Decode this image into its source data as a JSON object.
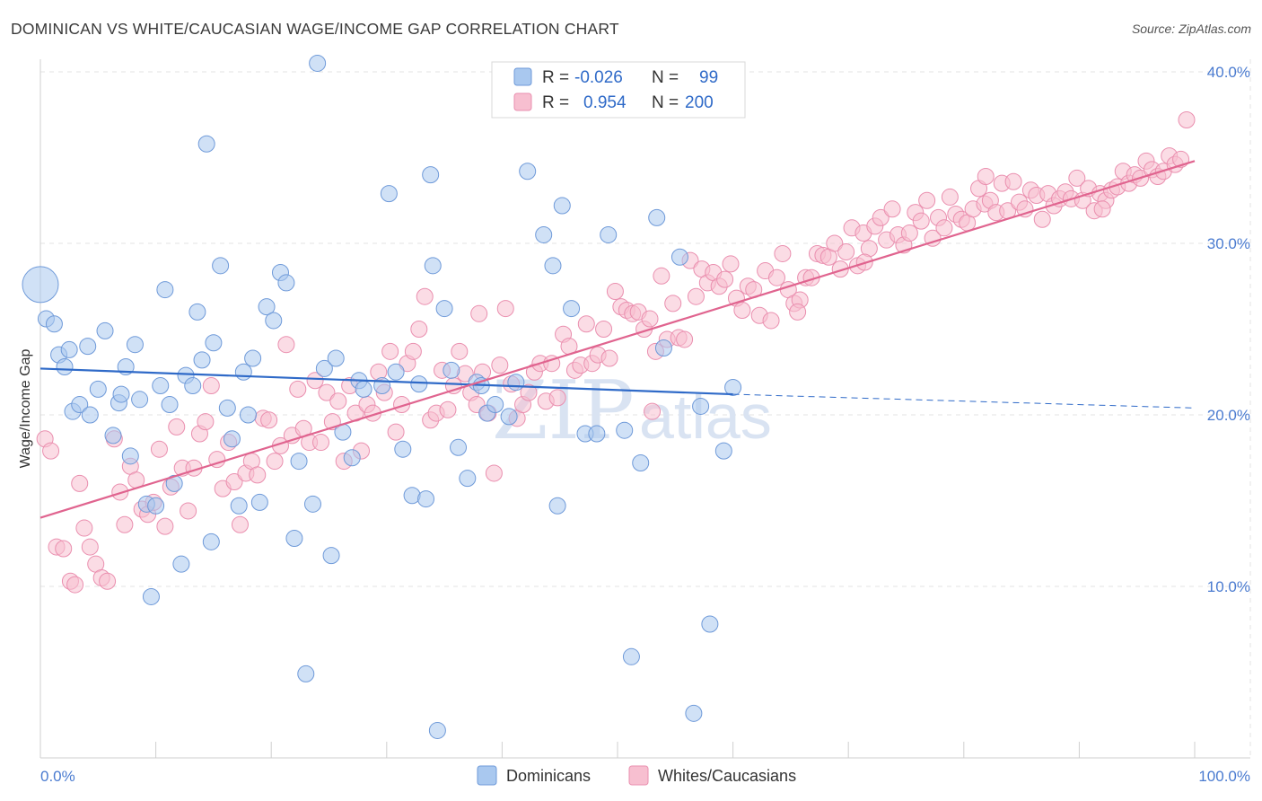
{
  "header": {
    "title": "DOMINICAN VS WHITE/CAUCASIAN WAGE/INCOME GAP CORRELATION CHART",
    "source": "Source: ZipAtlas.com"
  },
  "colors": {
    "blue_fill": "#a9c8ef",
    "blue_stroke": "#6f9ad9",
    "blue_line": "#2f6ac8",
    "pink_fill": "#f7bfd0",
    "pink_stroke": "#ea8faf",
    "pink_line": "#e0648f",
    "grid": "#e3e3e3",
    "axis_label": "#4a7bd0"
  },
  "legend": {
    "rows": [
      {
        "r_label": "R =",
        "r_value": "-0.026",
        "n_label": "N =",
        "n_value": "99"
      },
      {
        "r_label": "R =",
        "r_value": "0.954",
        "n_label": "N =",
        "n_value": "200"
      }
    ]
  },
  "bottom_legend": {
    "items": [
      "Dominicans",
      "Whites/Caucasians"
    ]
  },
  "watermark": {
    "zip": "ZIP",
    "atlas": "atlas"
  },
  "chart_data": {
    "type": "scatter",
    "title": "DOMINICAN VS WHITE/CAUCASIAN WAGE/INCOME GAP CORRELATION CHART",
    "xlabel": "",
    "ylabel": "Wage/Income Gap",
    "xlim": [
      0,
      100
    ],
    "ylim": [
      0,
      40
    ],
    "x_tick_labels": [
      "0.0%",
      "100.0%"
    ],
    "y_ticks": [
      10,
      20,
      30,
      40
    ],
    "y_tick_labels": [
      "10.0%",
      "20.0%",
      "30.0%",
      "40.0%"
    ],
    "series": [
      {
        "name": "Dominicans",
        "r": -0.026,
        "n": 99,
        "trend": {
          "x0": 0,
          "y0": 22.7,
          "x1": 60,
          "y1": 21.2,
          "dashed_to_x": 100,
          "dashed_to_y": 20.4
        },
        "points": [
          [
            0,
            27.6,
            "big"
          ],
          [
            0.5,
            25.6
          ],
          [
            1.2,
            25.3
          ],
          [
            1.6,
            23.5
          ],
          [
            2.1,
            22.8
          ],
          [
            2.8,
            20.2
          ],
          [
            3.4,
            20.6
          ],
          [
            2.5,
            23.8
          ],
          [
            4.1,
            24.0
          ],
          [
            4.3,
            20.0
          ],
          [
            5.0,
            21.5
          ],
          [
            5.6,
            24.9
          ],
          [
            6.3,
            18.8
          ],
          [
            6.8,
            20.7
          ],
          [
            7.0,
            21.2
          ],
          [
            7.4,
            22.8
          ],
          [
            7.8,
            17.6
          ],
          [
            8.2,
            24.1
          ],
          [
            8.6,
            20.9
          ],
          [
            9.2,
            14.8
          ],
          [
            9.6,
            9.4
          ],
          [
            10.0,
            14.7
          ],
          [
            10.4,
            21.7
          ],
          [
            10.8,
            27.3
          ],
          [
            11.2,
            20.6
          ],
          [
            11.6,
            16.0
          ],
          [
            12.2,
            11.3
          ],
          [
            12.6,
            22.3
          ],
          [
            13.2,
            21.7
          ],
          [
            13.6,
            26.0
          ],
          [
            14.0,
            23.2
          ],
          [
            14.4,
            35.8
          ],
          [
            14.8,
            12.6
          ],
          [
            15.0,
            24.2
          ],
          [
            15.6,
            28.7
          ],
          [
            16.2,
            20.4
          ],
          [
            16.6,
            18.6
          ],
          [
            17.2,
            14.7
          ],
          [
            17.6,
            22.5
          ],
          [
            18.0,
            20.0
          ],
          [
            18.4,
            23.3
          ],
          [
            19.0,
            14.9
          ],
          [
            19.6,
            26.3
          ],
          [
            20.2,
            25.5
          ],
          [
            20.8,
            28.3
          ],
          [
            21.3,
            27.7
          ],
          [
            22.0,
            12.8
          ],
          [
            22.4,
            17.3
          ],
          [
            23.0,
            4.9
          ],
          [
            23.6,
            14.8
          ],
          [
            24.0,
            40.5
          ],
          [
            24.6,
            22.7
          ],
          [
            25.2,
            11.8
          ],
          [
            25.6,
            23.3
          ],
          [
            26.2,
            19.0
          ],
          [
            27.0,
            17.5
          ],
          [
            27.6,
            22.0
          ],
          [
            28.0,
            21.5
          ],
          [
            29.6,
            21.7
          ],
          [
            30.2,
            32.9
          ],
          [
            30.8,
            22.5
          ],
          [
            31.4,
            18.0
          ],
          [
            32.2,
            15.3
          ],
          [
            32.8,
            21.8
          ],
          [
            33.4,
            15.1
          ],
          [
            34.0,
            28.7
          ],
          [
            34.4,
            1.6
          ],
          [
            35.0,
            26.2
          ],
          [
            35.6,
            22.6
          ],
          [
            36.2,
            18.1
          ],
          [
            37.0,
            16.3
          ],
          [
            37.8,
            21.9
          ],
          [
            38.2,
            21.7
          ],
          [
            38.7,
            20.1
          ],
          [
            39.4,
            20.6
          ],
          [
            40.6,
            19.9
          ],
          [
            41.2,
            21.9
          ],
          [
            42.2,
            34.2
          ],
          [
            43.6,
            30.5
          ],
          [
            44.4,
            28.7
          ],
          [
            45.2,
            32.2
          ],
          [
            46.0,
            26.2
          ],
          [
            47.2,
            18.9
          ],
          [
            48.2,
            18.9
          ],
          [
            49.2,
            30.5
          ],
          [
            50.6,
            19.1
          ],
          [
            51.2,
            5.9
          ],
          [
            52.0,
            17.2
          ],
          [
            53.4,
            31.5
          ],
          [
            54.0,
            23.9
          ],
          [
            55.4,
            29.2
          ],
          [
            56.6,
            2.6
          ],
          [
            57.2,
            20.5
          ],
          [
            58.0,
            7.8
          ],
          [
            59.2,
            17.9
          ],
          [
            60.0,
            21.6
          ],
          [
            44.8,
            14.7
          ],
          [
            33.8,
            34.0
          ]
        ]
      },
      {
        "name": "Whites/Caucasians",
        "r": 0.954,
        "n": 200,
        "trend": {
          "x0": 0,
          "y0": 14.0,
          "x1": 100,
          "y1": 34.8
        },
        "points": [
          [
            0.4,
            18.6
          ],
          [
            0.9,
            17.9
          ],
          [
            1.4,
            12.3
          ],
          [
            2.0,
            12.2
          ],
          [
            2.6,
            10.3
          ],
          [
            3.0,
            10.1
          ],
          [
            3.4,
            16.0
          ],
          [
            3.8,
            13.4
          ],
          [
            4.3,
            12.3
          ],
          [
            4.8,
            11.3
          ],
          [
            5.3,
            10.5
          ],
          [
            5.8,
            10.3
          ],
          [
            6.4,
            18.6
          ],
          [
            6.9,
            15.5
          ],
          [
            7.3,
            13.6
          ],
          [
            7.8,
            17.0
          ],
          [
            8.3,
            16.2
          ],
          [
            8.8,
            14.5
          ],
          [
            9.3,
            14.2
          ],
          [
            9.8,
            14.9
          ],
          [
            10.3,
            18.0
          ],
          [
            10.8,
            13.5
          ],
          [
            11.3,
            15.8
          ],
          [
            11.8,
            19.3
          ],
          [
            12.3,
            16.9
          ],
          [
            12.8,
            14.4
          ],
          [
            13.3,
            16.9
          ],
          [
            13.8,
            18.9
          ],
          [
            14.3,
            19.6
          ],
          [
            14.8,
            21.7
          ],
          [
            15.3,
            17.4
          ],
          [
            15.8,
            15.7
          ],
          [
            16.3,
            18.4
          ],
          [
            16.8,
            16.1
          ],
          [
            17.3,
            13.6
          ],
          [
            17.8,
            16.6
          ],
          [
            18.3,
            17.3
          ],
          [
            18.8,
            16.5
          ],
          [
            19.3,
            19.8
          ],
          [
            19.8,
            19.7
          ],
          [
            20.3,
            17.3
          ],
          [
            20.8,
            18.2
          ],
          [
            21.3,
            24.1
          ],
          [
            21.8,
            18.8
          ],
          [
            22.3,
            21.5
          ],
          [
            22.8,
            19.2
          ],
          [
            23.3,
            18.4
          ],
          [
            23.8,
            22.0
          ],
          [
            24.3,
            18.4
          ],
          [
            24.8,
            21.3
          ],
          [
            25.3,
            19.6
          ],
          [
            25.8,
            20.8
          ],
          [
            26.3,
            17.3
          ],
          [
            26.8,
            21.7
          ],
          [
            27.3,
            20.1
          ],
          [
            27.8,
            17.9
          ],
          [
            28.3,
            20.6
          ],
          [
            28.8,
            20.1
          ],
          [
            29.3,
            22.5
          ],
          [
            29.8,
            21.3
          ],
          [
            30.3,
            23.7
          ],
          [
            30.8,
            19.0
          ],
          [
            31.3,
            20.6
          ],
          [
            31.8,
            23.0
          ],
          [
            32.3,
            23.7
          ],
          [
            32.8,
            25.0
          ],
          [
            33.3,
            26.9
          ],
          [
            33.8,
            19.7
          ],
          [
            34.3,
            20.1
          ],
          [
            34.8,
            22.6
          ],
          [
            35.3,
            20.3
          ],
          [
            35.8,
            21.7
          ],
          [
            36.3,
            23.7
          ],
          [
            36.8,
            22.4
          ],
          [
            37.3,
            21.3
          ],
          [
            37.8,
            20.6
          ],
          [
            38.3,
            22.5
          ],
          [
            38.8,
            20.1
          ],
          [
            39.3,
            16.6
          ],
          [
            39.8,
            22.9
          ],
          [
            40.3,
            26.2
          ],
          [
            40.8,
            21.8
          ],
          [
            41.3,
            19.8
          ],
          [
            41.8,
            20.6
          ],
          [
            42.3,
            21.3
          ],
          [
            42.8,
            22.5
          ],
          [
            43.3,
            23.0
          ],
          [
            43.8,
            20.8
          ],
          [
            44.3,
            23.0
          ],
          [
            44.8,
            21.0
          ],
          [
            45.3,
            24.7
          ],
          [
            45.8,
            24.0
          ],
          [
            46.3,
            22.6
          ],
          [
            46.8,
            22.9
          ],
          [
            47.3,
            25.3
          ],
          [
            47.8,
            23.0
          ],
          [
            48.3,
            23.5
          ],
          [
            48.8,
            25.0
          ],
          [
            49.3,
            23.3
          ],
          [
            49.8,
            27.2
          ],
          [
            50.3,
            26.3
          ],
          [
            50.8,
            26.1
          ],
          [
            51.3,
            25.9
          ],
          [
            51.8,
            26.0
          ],
          [
            52.3,
            25.0
          ],
          [
            52.8,
            25.6
          ],
          [
            53.3,
            23.7
          ],
          [
            53.8,
            28.1
          ],
          [
            54.3,
            24.4
          ],
          [
            54.8,
            26.5
          ],
          [
            55.3,
            24.5
          ],
          [
            55.8,
            24.4
          ],
          [
            56.3,
            29.0
          ],
          [
            56.8,
            26.9
          ],
          [
            57.3,
            28.5
          ],
          [
            57.8,
            27.7
          ],
          [
            58.3,
            28.3
          ],
          [
            58.8,
            27.5
          ],
          [
            59.3,
            27.9
          ],
          [
            59.8,
            28.8
          ],
          [
            60.3,
            26.8
          ],
          [
            60.8,
            26.1
          ],
          [
            61.3,
            27.5
          ],
          [
            61.8,
            27.3
          ],
          [
            62.3,
            25.8
          ],
          [
            62.8,
            28.4
          ],
          [
            63.3,
            25.5
          ],
          [
            63.8,
            28.0
          ],
          [
            64.3,
            29.4
          ],
          [
            64.8,
            27.3
          ],
          [
            65.3,
            26.5
          ],
          [
            65.8,
            26.7
          ],
          [
            66.3,
            28.0
          ],
          [
            66.8,
            28.0
          ],
          [
            67.3,
            29.4
          ],
          [
            67.8,
            29.3
          ],
          [
            68.3,
            29.2
          ],
          [
            68.8,
            30.0
          ],
          [
            69.3,
            28.5
          ],
          [
            69.8,
            29.5
          ],
          [
            70.3,
            30.9
          ],
          [
            70.8,
            28.7
          ],
          [
            71.3,
            30.6
          ],
          [
            71.8,
            29.7
          ],
          [
            72.3,
            31.0
          ],
          [
            72.8,
            31.5
          ],
          [
            73.3,
            30.2
          ],
          [
            73.8,
            32.0
          ],
          [
            74.3,
            30.5
          ],
          [
            74.8,
            29.9
          ],
          [
            75.3,
            30.6
          ],
          [
            75.8,
            31.8
          ],
          [
            76.3,
            31.3
          ],
          [
            76.8,
            32.5
          ],
          [
            77.3,
            30.3
          ],
          [
            77.8,
            31.5
          ],
          [
            78.3,
            30.9
          ],
          [
            78.8,
            32.7
          ],
          [
            79.3,
            31.7
          ],
          [
            79.8,
            31.4
          ],
          [
            80.3,
            31.2
          ],
          [
            80.8,
            32.0
          ],
          [
            81.3,
            33.2
          ],
          [
            81.8,
            32.3
          ],
          [
            82.3,
            32.5
          ],
          [
            82.8,
            31.8
          ],
          [
            83.3,
            33.5
          ],
          [
            83.8,
            31.9
          ],
          [
            84.3,
            33.6
          ],
          [
            84.8,
            32.4
          ],
          [
            85.3,
            32.0
          ],
          [
            85.8,
            33.1
          ],
          [
            86.3,
            32.8
          ],
          [
            86.8,
            31.4
          ],
          [
            87.3,
            32.9
          ],
          [
            87.8,
            32.2
          ],
          [
            88.3,
            32.6
          ],
          [
            88.8,
            33.0
          ],
          [
            89.3,
            32.6
          ],
          [
            89.8,
            33.8
          ],
          [
            90.3,
            32.5
          ],
          [
            90.8,
            33.2
          ],
          [
            91.3,
            31.9
          ],
          [
            91.8,
            32.9
          ],
          [
            92.3,
            32.5
          ],
          [
            92.8,
            33.1
          ],
          [
            93.3,
            33.3
          ],
          [
            93.8,
            34.2
          ],
          [
            94.3,
            33.5
          ],
          [
            94.8,
            34.0
          ],
          [
            95.3,
            33.8
          ],
          [
            95.8,
            34.8
          ],
          [
            96.3,
            34.3
          ],
          [
            96.8,
            33.9
          ],
          [
            97.3,
            34.2
          ],
          [
            97.8,
            35.1
          ],
          [
            98.3,
            34.6
          ],
          [
            98.8,
            34.9
          ],
          [
            99.3,
            37.2
          ],
          [
            65.6,
            26.0
          ],
          [
            71.4,
            28.9
          ],
          [
            81.9,
            33.9
          ],
          [
            92.0,
            32.0
          ],
          [
            53.0,
            20.2
          ],
          [
            38.0,
            25.9
          ]
        ]
      }
    ]
  }
}
